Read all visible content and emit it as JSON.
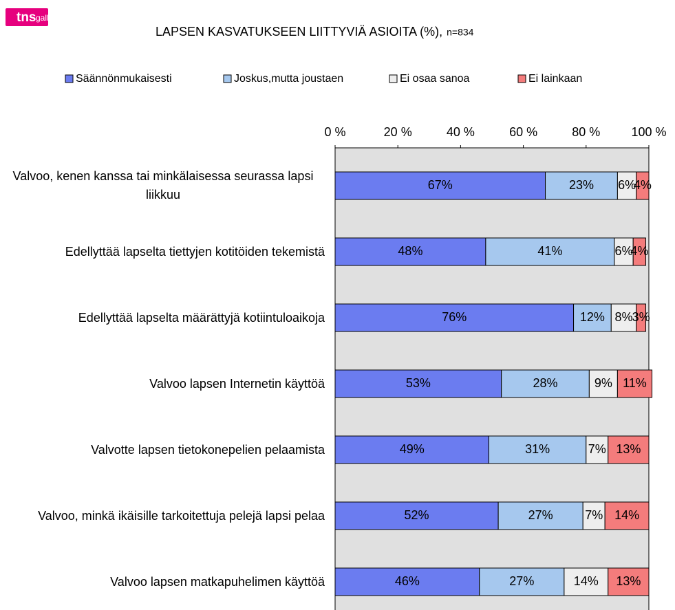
{
  "chart_data": {
    "type": "stacked-bar-horizontal",
    "logo": {
      "brand": "tns",
      "name": "gallup"
    },
    "title": "LAPSEN KASVATUKSEEN LIITTYVIÄ ASIOITA (%),",
    "subtitle": "n=834",
    "categories": [
      "Valvoo, kenen kanssa tai minkälaisessa seurassa lapsi liikkuu",
      "Edellyttää lapselta tiettyjen kotitöiden tekemistä",
      "Edellyttää lapselta määrättyjä kotiintuloaikoja",
      "Valvoo lapsen Internetin käyttöä",
      "Valvotte lapsen tietokonepelien pelaamista",
      "Valvoo, minkä ikäisille tarkoitettuja pelejä lapsi pelaa",
      "Valvoo lapsen matkapuhelimen käyttöä"
    ],
    "series": [
      {
        "name": "Säännönmukaisesti",
        "color": "#6b7cf0",
        "values": [
          67,
          48,
          76,
          53,
          49,
          52,
          46
        ],
        "value_labels": [
          "67%",
          "48%",
          "76%",
          "53%",
          "49%",
          "52%",
          "46%"
        ]
      },
      {
        "name": "Joskus,mutta joustaen",
        "color": "#a6c8ee",
        "values": [
          23,
          41,
          12,
          28,
          31,
          27,
          27
        ],
        "value_labels": [
          "23%",
          "41%",
          "12%",
          "28%",
          "31%",
          "27%",
          "27%"
        ]
      },
      {
        "name": "Ei osaa sanoa",
        "color": "#eeeeee",
        "values": [
          6,
          6,
          8,
          9,
          7,
          7,
          14
        ],
        "value_labels": [
          "6%",
          "6%",
          "8%",
          "9%",
          "7%",
          "7%",
          "14%"
        ]
      },
      {
        "name": "Ei lainkaan",
        "color": "#f47c7c",
        "values": [
          4,
          4,
          3,
          11,
          13,
          14,
          13
        ],
        "value_labels": [
          "4%",
          "4%",
          "3%",
          "11%",
          "13%",
          "14%",
          "13%"
        ]
      }
    ],
    "xlim": [
      0,
      100
    ],
    "xticks": [
      {
        "value": 0,
        "label": "0 %"
      },
      {
        "value": 20,
        "label": "20 %"
      },
      {
        "value": 40,
        "label": "40 %"
      },
      {
        "value": 60,
        "label": "60 %"
      },
      {
        "value": 80,
        "label": "80 %"
      },
      {
        "value": 100,
        "label": "100 %"
      }
    ],
    "legend": "top"
  }
}
